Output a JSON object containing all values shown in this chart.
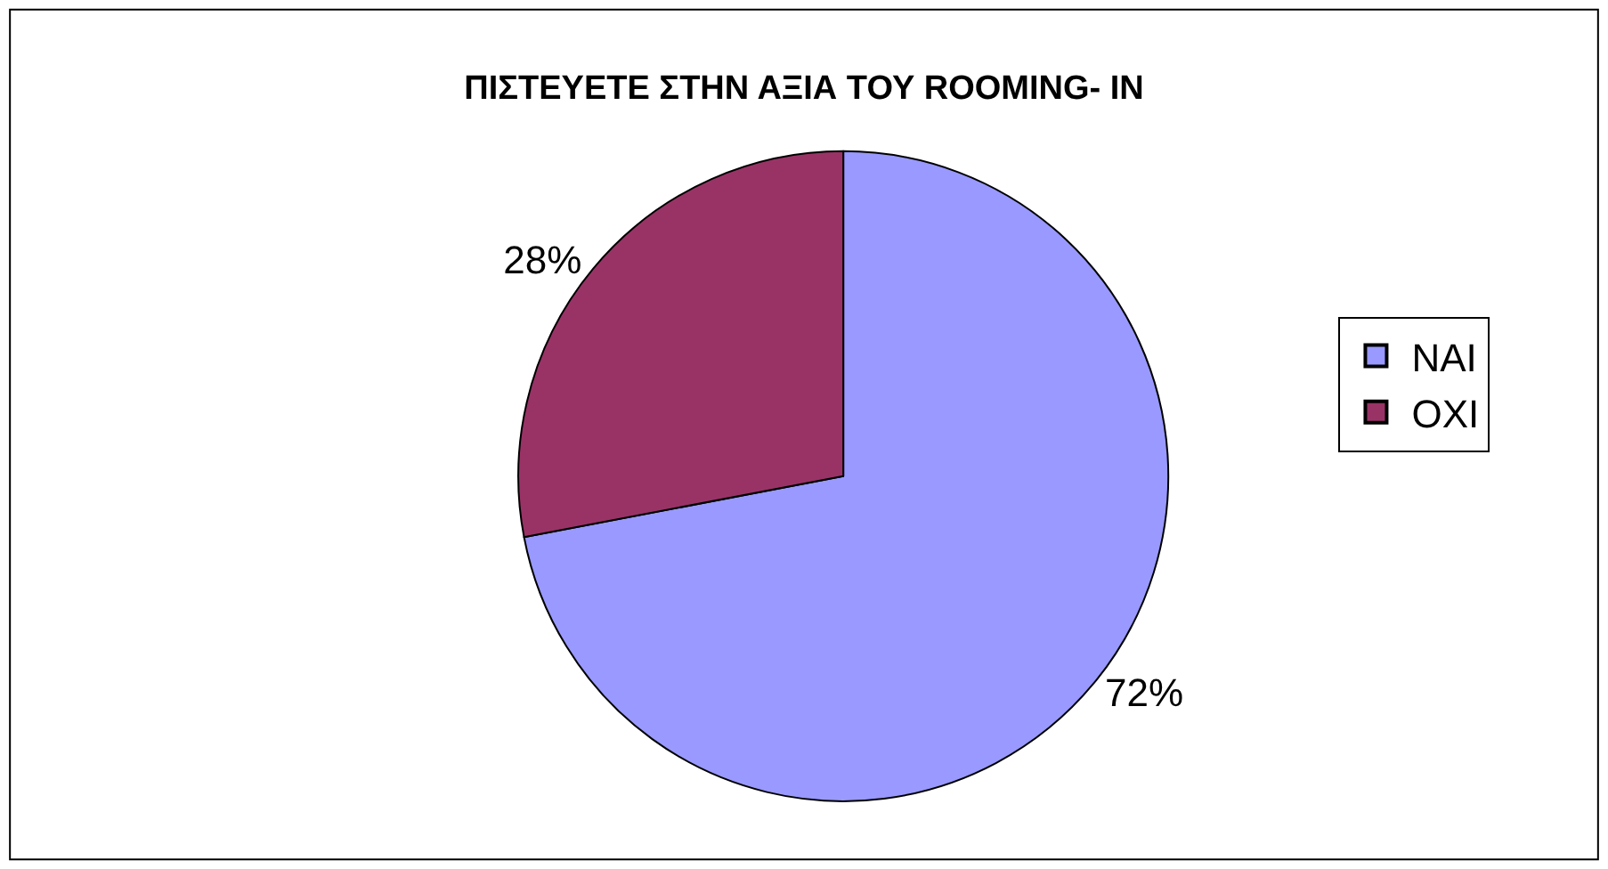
{
  "chart_data": {
    "type": "pie",
    "title": "ΠΙΣΤΕΥΕΤΕ ΣΤΗΝ ΑΞΙΑ ΤΟΥ ROOMING- IN",
    "categories": [
      "NAI",
      "OXI"
    ],
    "values": [
      72,
      28
    ],
    "colors": [
      "#9999ff",
      "#993366"
    ],
    "value_labels": [
      "72%",
      "28%"
    ],
    "legend": "right"
  }
}
